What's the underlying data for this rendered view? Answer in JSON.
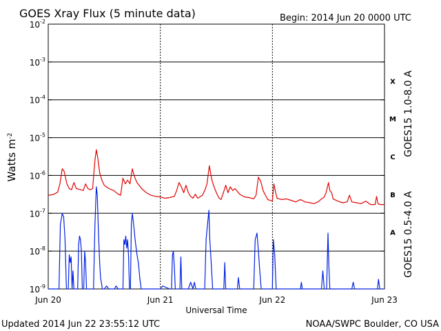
{
  "header": {
    "title": "GOES Xray Flux (5 minute data)",
    "begin": "Begin:  2014 Jun 20 0000 UTC"
  },
  "footer": {
    "updated": "Updated 2014 Jun 22 23:55:12 UTC",
    "credit": "NOAA/SWPC Boulder, CO USA"
  },
  "chart_data": {
    "type": "line",
    "title": "GOES Xray Flux (5 minute data)",
    "xlabel": "Universal Time",
    "ylabel": "Watts m",
    "ylabel_sup": "-2",
    "y_scale": "log",
    "ylim": [
      1e-09,
      0.01
    ],
    "xlim": [
      0,
      72
    ],
    "x_unit": "hours since 2014 Jun 20 0000 UTC",
    "x_ticks": [
      {
        "x": 0,
        "label": "Jun 20"
      },
      {
        "x": 24,
        "label": "Jun 21"
      },
      {
        "x": 48,
        "label": "Jun 22"
      },
      {
        "x": 72,
        "label": "Jun 23"
      }
    ],
    "y_ticks": [
      {
        "exp": -2,
        "base": "10",
        "sup": "-2"
      },
      {
        "exp": -3,
        "base": "10",
        "sup": "-3"
      },
      {
        "exp": -4,
        "base": "10",
        "sup": "-4"
      },
      {
        "exp": -5,
        "base": "10",
        "sup": "-5"
      },
      {
        "exp": -6,
        "base": "10",
        "sup": "-6"
      },
      {
        "exp": -7,
        "base": "10",
        "sup": "-7"
      },
      {
        "exp": -8,
        "base": "10",
        "sup": "-8"
      },
      {
        "exp": -9,
        "base": "10",
        "sup": "-9"
      }
    ],
    "flare_classes": [
      {
        "label": "X",
        "exp": -3.5
      },
      {
        "label": "M",
        "exp": -4.5
      },
      {
        "label": "C",
        "exp": -5.5
      },
      {
        "label": "B",
        "exp": -6.5
      },
      {
        "label": "A",
        "exp": -7.5
      }
    ],
    "grid_levels": [
      -3,
      -4,
      -5,
      -6,
      -7,
      -8
    ],
    "grid": true,
    "series": [
      {
        "name": "GOES15 1.0-8.0 A",
        "color": "#e00000",
        "points": [
          [
            0,
            3e-07
          ],
          [
            1,
            3.1e-07
          ],
          [
            2,
            3.6e-07
          ],
          [
            2.5,
            6e-07
          ],
          [
            3,
            1.5e-06
          ],
          [
            3.4,
            1.3e-06
          ],
          [
            4,
            6e-07
          ],
          [
            4.5,
            4.5e-07
          ],
          [
            5,
            4.2e-07
          ],
          [
            5.5,
            6.5e-07
          ],
          [
            6,
            4.5e-07
          ],
          [
            7,
            4.2e-07
          ],
          [
            7.5,
            4e-07
          ],
          [
            8,
            6e-07
          ],
          [
            8.5,
            4.5e-07
          ],
          [
            9,
            4.2e-07
          ],
          [
            9.5,
            4.5e-07
          ],
          [
            10,
            2.5e-06
          ],
          [
            10.3,
            4.8e-06
          ],
          [
            10.6,
            3e-06
          ],
          [
            11,
            1.2e-06
          ],
          [
            11.5,
            7.5e-07
          ],
          [
            12,
            5.5e-07
          ],
          [
            13,
            4.5e-07
          ],
          [
            14,
            4e-07
          ],
          [
            15,
            3.2e-07
          ],
          [
            15.5,
            3e-07
          ],
          [
            16,
            8.5e-07
          ],
          [
            16.5,
            6e-07
          ],
          [
            17,
            7.5e-07
          ],
          [
            17.5,
            6e-07
          ],
          [
            18,
            1.5e-06
          ],
          [
            18.5,
            9e-07
          ],
          [
            19,
            6.5e-07
          ],
          [
            20,
            4.5e-07
          ],
          [
            21,
            3.5e-07
          ],
          [
            22,
            3e-07
          ],
          [
            23,
            2.8e-07
          ],
          [
            24,
            2.7e-07
          ],
          [
            25,
            2.5e-07
          ],
          [
            26,
            2.6e-07
          ],
          [
            27,
            2.8e-07
          ],
          [
            27.5,
            4e-07
          ],
          [
            28,
            6.5e-07
          ],
          [
            28.5,
            5e-07
          ],
          [
            29,
            3.5e-07
          ],
          [
            29.5,
            5.5e-07
          ],
          [
            30,
            3.5e-07
          ],
          [
            30.5,
            2.8e-07
          ],
          [
            31,
            2.5e-07
          ],
          [
            31.5,
            3.2e-07
          ],
          [
            32,
            2.5e-07
          ],
          [
            33,
            3e-07
          ],
          [
            33.5,
            4e-07
          ],
          [
            34,
            6e-07
          ],
          [
            34.5,
            1.8e-06
          ],
          [
            35,
            8e-07
          ],
          [
            35.5,
            5e-07
          ],
          [
            36,
            3.5e-07
          ],
          [
            36.5,
            2.6e-07
          ],
          [
            37,
            2.3e-07
          ],
          [
            37.5,
            3.5e-07
          ],
          [
            38,
            5.5e-07
          ],
          [
            38.5,
            3.5e-07
          ],
          [
            39,
            5e-07
          ],
          [
            39.5,
            4e-07
          ],
          [
            40,
            4.5e-07
          ],
          [
            41,
            3.2e-07
          ],
          [
            42,
            2.7e-07
          ],
          [
            43,
            2.6e-07
          ],
          [
            44,
            2.4e-07
          ],
          [
            44.5,
            3e-07
          ],
          [
            45,
            9e-07
          ],
          [
            45.5,
            7e-07
          ],
          [
            46,
            4e-07
          ],
          [
            46.5,
            3e-07
          ],
          [
            47,
            2.3e-07
          ],
          [
            48,
            2.1e-07
          ],
          [
            48.3,
            6e-07
          ],
          [
            48.7,
            3.5e-07
          ],
          [
            49,
            2.5e-07
          ],
          [
            50,
            2.3e-07
          ],
          [
            51,
            2.4e-07
          ],
          [
            52,
            2.2e-07
          ],
          [
            53,
            2e-07
          ],
          [
            54,
            2.3e-07
          ],
          [
            55,
            2e-07
          ],
          [
            56,
            1.9e-07
          ],
          [
            57,
            1.8e-07
          ],
          [
            58,
            2.1e-07
          ],
          [
            58.5,
            2.4e-07
          ],
          [
            59,
            2.6e-07
          ],
          [
            59.5,
            3.5e-07
          ],
          [
            60,
            6.5e-07
          ],
          [
            60.3,
            4e-07
          ],
          [
            60.7,
            3.5e-07
          ],
          [
            61,
            2.4e-07
          ],
          [
            62,
            2.1e-07
          ],
          [
            63,
            1.9e-07
          ],
          [
            64,
            2e-07
          ],
          [
            64.5,
            3e-07
          ],
          [
            65,
            2e-07
          ],
          [
            66,
            1.9e-07
          ],
          [
            67,
            1.8e-07
          ],
          [
            68,
            2.1e-07
          ],
          [
            69,
            1.7e-07
          ],
          [
            70,
            1.7e-07
          ],
          [
            70.3,
            2.8e-07
          ],
          [
            70.6,
            1.8e-07
          ],
          [
            71,
            1.7e-07
          ],
          [
            72,
            1.7e-07
          ]
        ]
      },
      {
        "name": "GOES15 0.5-4.0 A",
        "color": "#0020e0",
        "points": [
          [
            0,
            1e-09
          ],
          [
            2.3,
            1e-09
          ],
          [
            2.6,
            5e-08
          ],
          [
            3,
            1e-07
          ],
          [
            3.3,
            8e-08
          ],
          [
            3.6,
            2e-08
          ],
          [
            3.9,
            1e-09
          ],
          [
            4.3,
            1e-09
          ],
          [
            4.5,
            8e-09
          ],
          [
            4.7,
            5e-09
          ],
          [
            4.9,
            7e-09
          ],
          [
            5.1,
            1e-09
          ],
          [
            5.3,
            3e-09
          ],
          [
            5.5,
            1e-09
          ],
          [
            6.3,
            1e-09
          ],
          [
            6.5,
            1.5e-08
          ],
          [
            6.7,
            2.5e-08
          ],
          [
            6.9,
            2e-08
          ],
          [
            7.1,
            1e-08
          ],
          [
            7.3,
            1e-09
          ],
          [
            7.6,
            1e-09
          ],
          [
            7.8,
            1e-08
          ],
          [
            8,
            5e-09
          ],
          [
            8.2,
            1e-09
          ],
          [
            9.7,
            1e-09
          ],
          [
            10,
            5e-08
          ],
          [
            10.3,
            5e-07
          ],
          [
            10.5,
            3e-07
          ],
          [
            10.7,
            5e-08
          ],
          [
            11,
            5e-09
          ],
          [
            11.2,
            2e-09
          ],
          [
            11.6,
            1e-09
          ],
          [
            12,
            1e-09
          ],
          [
            12.5,
            1.2e-09
          ],
          [
            13,
            1e-09
          ],
          [
            14,
            1e-09
          ],
          [
            14.2,
            1e-09
          ],
          [
            14.5,
            1.2e-09
          ],
          [
            15,
            1e-09
          ],
          [
            16,
            1e-09
          ],
          [
            16.2,
            2e-08
          ],
          [
            16.4,
            1.5e-08
          ],
          [
            16.6,
            2.5e-08
          ],
          [
            16.8,
            1.2e-08
          ],
          [
            17,
            2e-08
          ],
          [
            17.2,
            7e-09
          ],
          [
            17.4,
            1e-09
          ],
          [
            17.6,
            1e-09
          ],
          [
            17.8,
            5e-08
          ],
          [
            18,
            1e-07
          ],
          [
            18.3,
            5e-08
          ],
          [
            18.6,
            2e-08
          ],
          [
            19,
            8e-09
          ],
          [
            19.3,
            5e-09
          ],
          [
            19.6,
            2e-09
          ],
          [
            19.9,
            1e-09
          ],
          [
            23,
            1e-09
          ],
          [
            24,
            1e-09
          ],
          [
            24.5,
            1.2e-09
          ],
          [
            26,
            1e-09
          ],
          [
            26.4,
            1e-09
          ],
          [
            26.6,
            8e-09
          ],
          [
            26.8,
            1e-08
          ],
          [
            27,
            4e-09
          ],
          [
            27.2,
            1e-09
          ],
          [
            28.2,
            1e-09
          ],
          [
            28.4,
            7e-09
          ],
          [
            28.6,
            1e-09
          ],
          [
            30,
            1e-09
          ],
          [
            30.5,
            1.5e-09
          ],
          [
            31,
            1e-09
          ],
          [
            31.3,
            1.5e-09
          ],
          [
            31.6,
            1e-09
          ],
          [
            33.5,
            1e-09
          ],
          [
            33.8,
            2e-08
          ],
          [
            34.1,
            5e-08
          ],
          [
            34.4,
            1.2e-07
          ],
          [
            34.6,
            2e-08
          ],
          [
            34.9,
            5e-09
          ],
          [
            35.2,
            1e-09
          ],
          [
            37.6,
            1e-09
          ],
          [
            37.8,
            5e-09
          ],
          [
            38,
            1e-09
          ],
          [
            40.5,
            1e-09
          ],
          [
            40.7,
            2e-09
          ],
          [
            41,
            1e-09
          ],
          [
            44,
            1e-09
          ],
          [
            44.3,
            2e-08
          ],
          [
            44.7,
            3e-08
          ],
          [
            45,
            1e-08
          ],
          [
            45.3,
            3e-09
          ],
          [
            45.6,
            1e-09
          ],
          [
            48,
            1e-09
          ],
          [
            48.2,
            2e-08
          ],
          [
            48.5,
            8e-09
          ],
          [
            48.8,
            1e-09
          ],
          [
            54,
            1e-09
          ],
          [
            54.2,
            1.5e-09
          ],
          [
            54.4,
            1e-09
          ],
          [
            58.5,
            1e-09
          ],
          [
            58.8,
            3e-09
          ],
          [
            59.1,
            1e-09
          ],
          [
            59.6,
            1e-09
          ],
          [
            59.9,
            3e-08
          ],
          [
            60.1,
            4e-09
          ],
          [
            60.3,
            1e-09
          ],
          [
            65,
            1e-09
          ],
          [
            65.3,
            1.5e-09
          ],
          [
            65.6,
            1e-09
          ],
          [
            70.5,
            1e-09
          ],
          [
            70.7,
            1.8e-09
          ],
          [
            71,
            1e-09
          ],
          [
            72,
            1e-09
          ]
        ]
      }
    ]
  }
}
